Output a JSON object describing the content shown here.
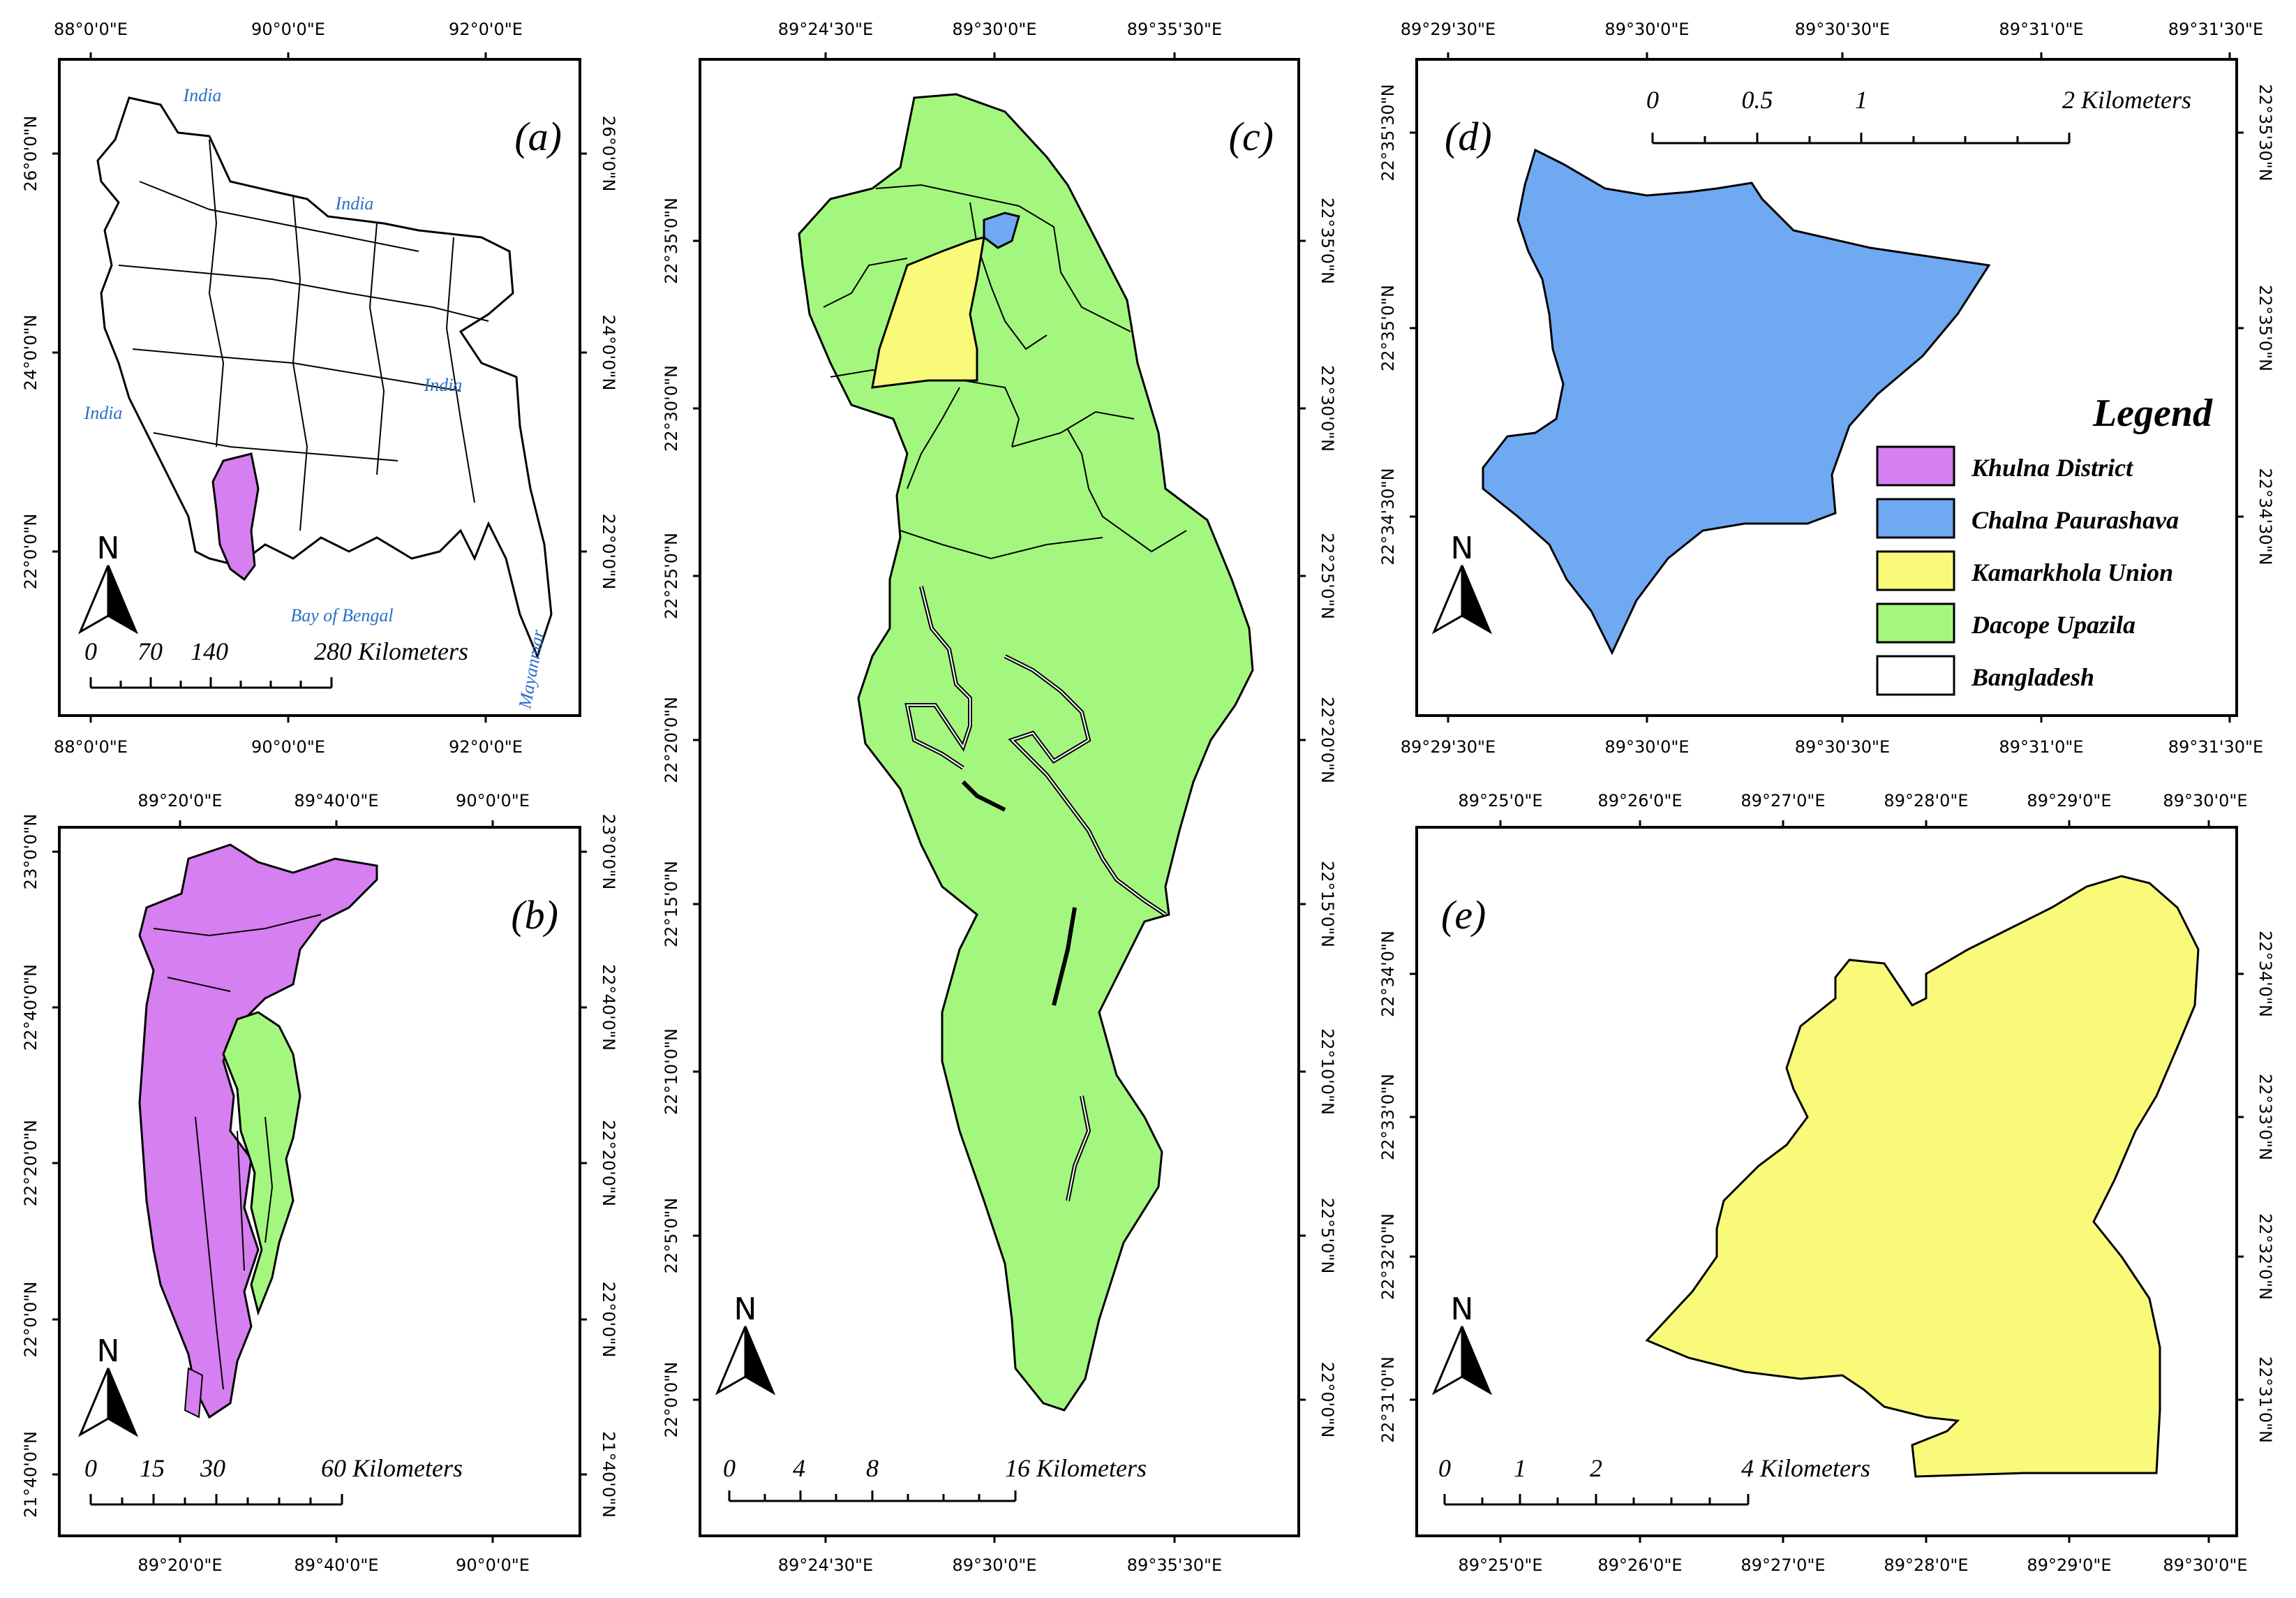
{
  "colors": {
    "khulna": "#d67ff0",
    "chalna": "#6fa9f2",
    "kamarkhola": "#fafa7a",
    "dacope": "#a4f77e",
    "bangladesh": "#ffffff",
    "place_label": "#2a6fc6"
  },
  "north_label": "N",
  "panels": {
    "a": {
      "label": "(a)",
      "top_lon": [
        "88°0'0\"E",
        "90°0'0\"E",
        "92°0'0\"E"
      ],
      "bottom_lon": [
        "88°0'0\"E",
        "90°0'0\"E",
        "92°0'0\"E"
      ],
      "left_lat": [
        "26°0'0\"N",
        "24°0'0\"N",
        "22°0'0\"N"
      ],
      "right_lat": [
        "26°0'0\"N",
        "24°0'0\"N",
        "22°0'0\"N"
      ],
      "places": [
        "India",
        "India",
        "India",
        "India",
        "Bay of Bengal",
        "Mayanmar"
      ],
      "scale": [
        "0",
        "70",
        "140",
        "280 Kilometers"
      ]
    },
    "b": {
      "label": "(b)",
      "top_lon": [
        "89°20'0\"E",
        "89°40'0\"E",
        "90°0'0\"E"
      ],
      "bottom_lon": [
        "89°20'0\"E",
        "89°40'0\"E",
        "90°0'0\"E"
      ],
      "left_lat": [
        "23°0'0\"N",
        "22°40'0\"N",
        "22°20'0\"N",
        "22°0'0\"N",
        "21°40'0\"N"
      ],
      "right_lat": [
        "23°0'0\"N",
        "22°40'0\"N",
        "22°20'0\"N",
        "22°0'0\"N",
        "21°40'0\"N"
      ],
      "scale": [
        "0",
        "15",
        "30",
        "60 Kilometers"
      ]
    },
    "c": {
      "label": "(c)",
      "top_lon": [
        "89°24'30\"E",
        "89°30'0\"E",
        "89°35'30\"E"
      ],
      "bottom_lon": [
        "89°24'30\"E",
        "89°30'0\"E",
        "89°35'30\"E"
      ],
      "left_lat": [
        "22°35'0\"N",
        "22°30'0\"N",
        "22°25'0\"N",
        "22°20'0\"N",
        "22°15'0\"N",
        "22°10'0\"N",
        "22°5'0\"N",
        "22°0'0\"N"
      ],
      "right_lat": [
        "22°35'0\"N",
        "22°30'0\"N",
        "22°25'0\"N",
        "22°20'0\"N",
        "22°15'0\"N",
        "22°10'0\"N",
        "22°5'0\"N",
        "22°0'0\"N"
      ],
      "scale": [
        "0",
        "4",
        "8",
        "16 Kilometers"
      ]
    },
    "d": {
      "label": "(d)",
      "top_lon": [
        "89°29'30\"E",
        "89°30'0\"E",
        "89°30'30\"E",
        "89°31'0\"E",
        "89°31'30\"E"
      ],
      "bottom_lon": [
        "89°29'30\"E",
        "89°30'0\"E",
        "89°30'30\"E",
        "89°31'0\"E",
        "89°31'30\"E"
      ],
      "left_lat": [
        "22°35'30\"N",
        "22°35'0\"N",
        "22°34'30\"N"
      ],
      "right_lat": [
        "22°35'30\"N",
        "22°35'0\"N",
        "22°34'30\"N"
      ],
      "scale": [
        "0",
        "0.5",
        "1",
        "2 Kilometers"
      ]
    },
    "e": {
      "label": "(e)",
      "top_lon": [
        "89°25'0\"E",
        "89°26'0\"E",
        "89°27'0\"E",
        "89°28'0\"E",
        "89°29'0\"E",
        "89°30'0\"E"
      ],
      "bottom_lon": [
        "89°25'0\"E",
        "89°26'0\"E",
        "89°27'0\"E",
        "89°28'0\"E",
        "89°29'0\"E",
        "89°30'0\"E"
      ],
      "left_lat": [
        "22°34'0\"N",
        "22°33'0\"N",
        "22°32'0\"N",
        "22°31'0\"N"
      ],
      "right_lat": [
        "22°34'0\"N",
        "22°33'0\"N",
        "22°32'0\"N",
        "22°31'0\"N"
      ],
      "scale": [
        "0",
        "1",
        "2",
        "4 Kilometers"
      ]
    }
  },
  "legend": {
    "title": "Legend",
    "items": [
      {
        "label": "Khulna District",
        "color": "#d67ff0"
      },
      {
        "label": "Chalna Paurashava",
        "color": "#6fa9f2"
      },
      {
        "label": "Kamarkhola Union",
        "color": "#fafa7a"
      },
      {
        "label": "Dacope Upazila",
        "color": "#a4f77e"
      },
      {
        "label": "Bangladesh",
        "color": "#ffffff"
      }
    ]
  }
}
